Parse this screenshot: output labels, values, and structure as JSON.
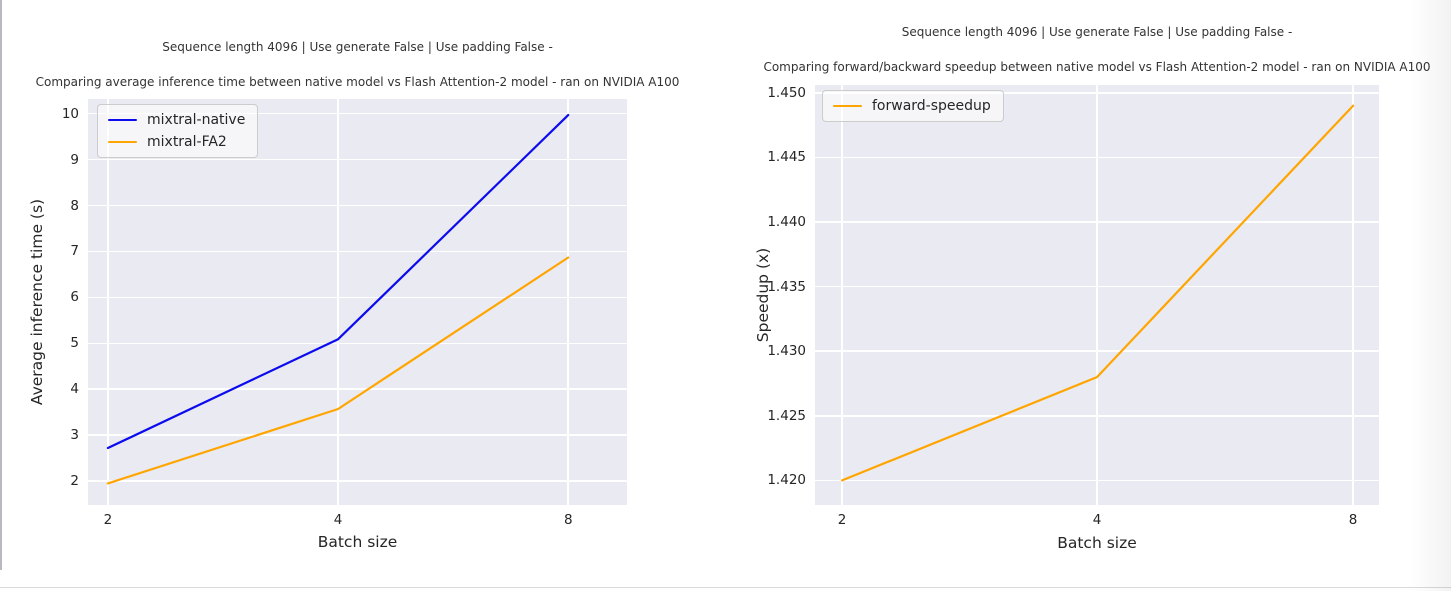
{
  "colors": {
    "plot_background": "#eaeaf2",
    "gridline": "#ffffff",
    "text": "#262626",
    "title_text": "#333333",
    "native_line_blue": "#0b0bee",
    "fa2_line_orange": "#ffa500",
    "speedup_line_orange": "#ffa500"
  },
  "chart_data": [
    {
      "type": "line",
      "suptitle": "Sequence length 4096 | Use generate False | Use padding False -",
      "title": "Comparing average inference time between native model vs Flash Attention-2 model - ran on NVIDIA A100",
      "xlabel": "Batch size",
      "ylabel": "Average inference time (s)",
      "categories": [
        "2",
        "4",
        "8"
      ],
      "series": [
        {
          "name": "mixtral-native",
          "color": "#0b0bee",
          "values": [
            2.72,
            5.09,
            9.97
          ]
        },
        {
          "name": "mixtral-FA2",
          "color": "#ffa500",
          "values": [
            1.95,
            3.57,
            6.87
          ]
        }
      ],
      "y_ticks": [
        2,
        3,
        4,
        5,
        6,
        7,
        8,
        9,
        10
      ],
      "y_tick_labels": [
        "2",
        "3",
        "4",
        "5",
        "6",
        "7",
        "8",
        "9",
        "10"
      ],
      "ylim": [
        1.48,
        10.32
      ],
      "grid": true,
      "legend_position": "upper left"
    },
    {
      "type": "line",
      "suptitle": "Sequence length 4096 | Use generate False | Use padding False -",
      "title": "Comparing forward/backward speedup between native model vs Flash Attention-2 model - ran on NVIDIA A100",
      "xlabel": "Batch size",
      "ylabel": "Speedup (x)",
      "categories": [
        "2",
        "4",
        "8"
      ],
      "series": [
        {
          "name": "forward-speedup",
          "color": "#ffa500",
          "values": [
            1.42,
            1.428,
            1.449
          ]
        }
      ],
      "y_ticks": [
        1.42,
        1.425,
        1.43,
        1.435,
        1.44,
        1.445,
        1.45
      ],
      "y_tick_labels": [
        "1.420",
        "1.425",
        "1.430",
        "1.435",
        "1.440",
        "1.445",
        "1.450"
      ],
      "ylim": [
        1.4181,
        1.4506
      ],
      "grid": true,
      "legend_position": "upper left"
    }
  ]
}
